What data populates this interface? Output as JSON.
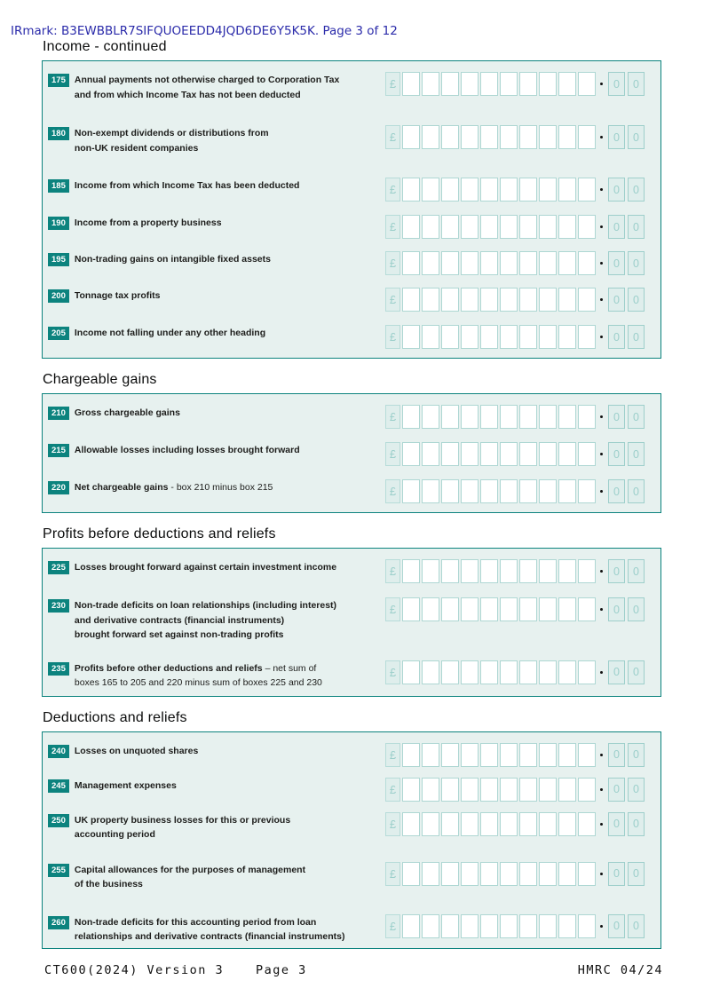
{
  "header": {
    "irmark_line": "IRmark: B3EWBBLR7SIFQUOEEDD4JQD6DE6Y5K5K. Page 3 of 12"
  },
  "currency": {
    "symbol": "£",
    "digit_count": 10,
    "pence_digits": [
      "0",
      "0"
    ]
  },
  "colors": {
    "teal": "#0C837E",
    "panel_mint": "#E7F1EF",
    "field_light_fill": "#DFEEEC",
    "field_glyph": "#9CCFCB",
    "irmark_blue": "#2B2BAA"
  },
  "sections": [
    {
      "title": "Income - continued",
      "rows": [
        {
          "box": "175",
          "label": "Annual payments not otherwise charged to Corporation Tax\nand from which Income Tax has not been deducted"
        },
        {
          "box": "180",
          "label": "Non-exempt dividends or distributions from\nnon-UK resident companies"
        },
        {
          "box": "185",
          "label": "Income from which Income Tax has been deducted"
        },
        {
          "box": "190",
          "label": "Income from a property business"
        },
        {
          "box": "195",
          "label": "Non-trading gains on intangible fixed assets"
        },
        {
          "box": "200",
          "label": "Tonnage tax profits"
        },
        {
          "box": "205",
          "label": "Income not falling under any other heading"
        }
      ]
    },
    {
      "title": "Chargeable gains",
      "rows": [
        {
          "box": "210",
          "label": "Gross chargeable gains"
        },
        {
          "box": "215",
          "label": "Allowable losses including losses brought forward"
        },
        {
          "box": "220",
          "label": "Net chargeable gains",
          "note": " - box 210 minus box 215"
        }
      ]
    },
    {
      "title": "Profits before deductions and reliefs",
      "rows": [
        {
          "box": "225",
          "label": "Losses brought forward against certain investment income"
        },
        {
          "box": "230",
          "label": "Non-trade deficits on loan relationships (including interest)\nand derivative contracts (financial instruments)\nbrought forward set against non-trading profits"
        },
        {
          "box": "235",
          "label": "Profits before other deductions and reliefs",
          "note": " – net sum of\nboxes 165 to 205 and 220 minus sum of boxes 225 and 230"
        }
      ]
    },
    {
      "title": "Deductions and reliefs",
      "rows": [
        {
          "box": "240",
          "label": "Losses on unquoted shares"
        },
        {
          "box": "245",
          "label": "Management expenses"
        },
        {
          "box": "250",
          "label": "UK property business losses for this or previous\naccounting period"
        },
        {
          "box": "255",
          "label": "Capital allowances for the purposes of management\nof the business"
        },
        {
          "box": "260",
          "label": "Non-trade deficits for this accounting period from loan\nrelationships and derivative contracts (financial instruments)"
        }
      ]
    }
  ],
  "footer": {
    "left": "CT600(2024) Version 3",
    "center": "Page 3",
    "right": "HMRC 04/24"
  }
}
